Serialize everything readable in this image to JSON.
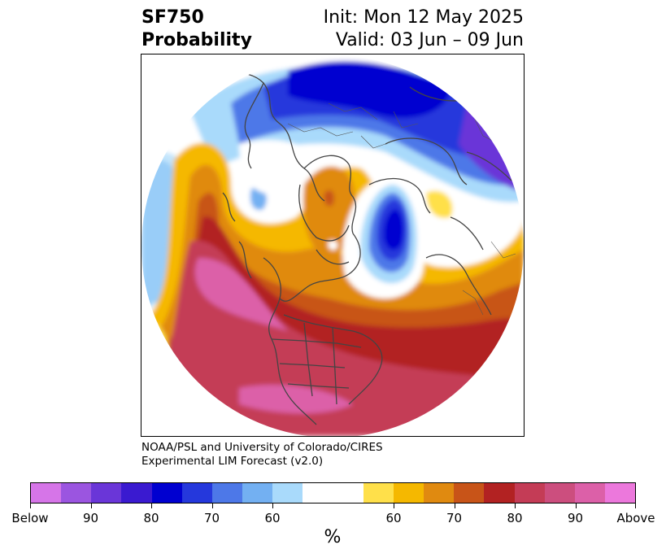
{
  "header": {
    "title_line1": "SF750",
    "title_line2": "Probability",
    "init": "Init: Mon 12 May 2025",
    "valid": "Valid: 03 Jun – 09 Jun"
  },
  "credit": {
    "line1": "NOAA/PSL and University of Colorado/CIRES",
    "line2": "Experimental LIM Forecast (v2.0)"
  },
  "colorbar": {
    "colors": [
      "#d675e8",
      "#9b55e0",
      "#6a36d8",
      "#3a1ad0",
      "#0000d0",
      "#2538dc",
      "#4d78e8",
      "#73b0f2",
      "#a9dafb",
      "#ffffff",
      "#ffffff",
      "#ffe04a",
      "#f5b800",
      "#e08a10",
      "#c85418",
      "#b22222",
      "#c43c56",
      "#cc4e7e",
      "#dc60a8",
      "#ec78dc"
    ],
    "tick_labels": [
      "Below",
      "90",
      "80",
      "70",
      "60",
      "60",
      "70",
      "80",
      "90",
      "Above"
    ],
    "unit": "%"
  },
  "map": {
    "colors": {
      "background": "#ffffff",
      "below_strong": "#0000d0",
      "below_mid": "#2538dc",
      "below_light": "#73b0f2",
      "below_faint": "#a9dafb",
      "above_faint": "#ffe04a",
      "above_light": "#f5b800",
      "above_mid": "#e08a10",
      "above_orange": "#c85418",
      "above_red": "#b22222",
      "above_crimson": "#c43c56",
      "above_pink": "#dc60a8",
      "coastline": "#444444"
    }
  }
}
